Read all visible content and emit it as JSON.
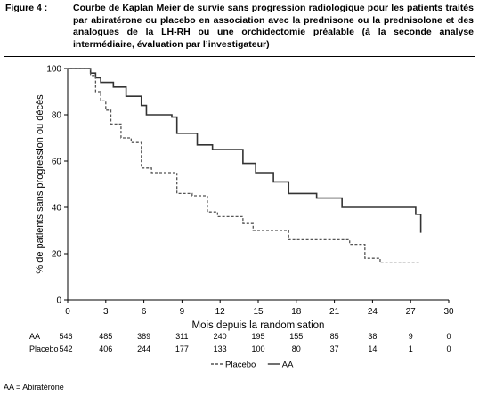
{
  "figure": {
    "label": "Figure 4 :",
    "caption": "Courbe de Kaplan Meier de survie sans progression radiologique pour les patients traités par abiratérone ou placebo en association avec la prednisone ou la prednisolone et des analogues de la LH-RH ou une orchidectomie préalable (à la seconde analyse intermédiaire, évaluation par l’investigateur)"
  },
  "footnote": "AA = Abiratérone",
  "chart_data": {
    "type": "line",
    "subtype": "kaplan-meier-step",
    "xlabel": "Mois depuis la randomisation",
    "ylabel": "% de patients sans progression ou décès",
    "xlim": [
      0,
      30
    ],
    "ylim": [
      0,
      100
    ],
    "xticks": [
      0,
      3,
      6,
      9,
      12,
      15,
      18,
      21,
      24,
      27,
      30
    ],
    "yticks": [
      0,
      20,
      40,
      60,
      80,
      100
    ],
    "grid": false,
    "legend_position": "bottom-center",
    "series": [
      {
        "name": "AA",
        "style": "solid",
        "color": "#333333",
        "x": [
          0,
          1.8,
          2.2,
          2.6,
          3.6,
          4.6,
          5.8,
          6.2,
          8.2,
          8.6,
          10.2,
          11.4,
          13.8,
          14.8,
          16.2,
          17.4,
          19.6,
          21.6,
          27.4,
          27.8
        ],
        "y": [
          100,
          98,
          96,
          94,
          92,
          88,
          84,
          80,
          79,
          72,
          67,
          65,
          59,
          55,
          51,
          46,
          44,
          40,
          37,
          29
        ]
      },
      {
        "name": "Placebo",
        "style": "dashed",
        "color": "#555555",
        "x": [
          0,
          1.8,
          2.2,
          2.6,
          3.0,
          3.4,
          4.2,
          5.0,
          5.8,
          6.6,
          8.6,
          9.8,
          11.0,
          11.8,
          13.8,
          14.6,
          16.2,
          17.4,
          22.2,
          23.4,
          24.6,
          27.8
        ],
        "y": [
          100,
          97,
          90,
          86,
          82,
          76,
          70,
          68,
          57,
          55,
          46,
          45,
          38,
          36,
          33,
          30,
          30,
          26,
          24,
          18,
          16,
          16
        ]
      }
    ],
    "risk_table": {
      "times": [
        0,
        3,
        6,
        9,
        12,
        15,
        18,
        21,
        24,
        27,
        30
      ],
      "rows": [
        {
          "label": "AA",
          "values": [
            546,
            485,
            389,
            311,
            240,
            195,
            155,
            85,
            38,
            9,
            0
          ]
        },
        {
          "label": "Placebo",
          "values": [
            542,
            406,
            244,
            177,
            133,
            100,
            80,
            37,
            14,
            1,
            0
          ]
        }
      ]
    },
    "legend": [
      {
        "label": "Placebo",
        "style": "dashed"
      },
      {
        "label": "AA",
        "style": "solid"
      }
    ]
  }
}
